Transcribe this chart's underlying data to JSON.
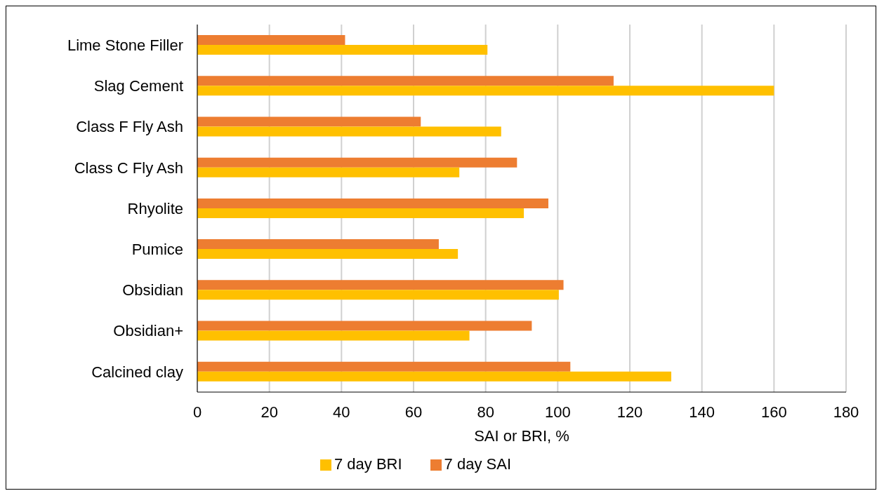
{
  "chart_data": {
    "type": "bar",
    "orientation": "horizontal",
    "xlabel": "SAI or BRI, %",
    "categories": [
      "Lime Stone Filler",
      "Slag Cement",
      "Class F Fly Ash",
      "Class C Fly Ash",
      "Rhyolite",
      "Pumice",
      "Obsidian",
      "Obsidian+",
      "Calcined clay"
    ],
    "series": [
      {
        "name": "7 day SAI",
        "color": "#ed7d31",
        "values": [
          41,
          115.5,
          62,
          88.7,
          97.4,
          67,
          101.6,
          92.8,
          103.5
        ]
      },
      {
        "name": "7 day BRI",
        "color": "#ffc000",
        "values": [
          80.5,
          160,
          84.3,
          72.7,
          90.6,
          72.3,
          100.3,
          75.5,
          131.5
        ]
      }
    ],
    "xlim": [
      0,
      180
    ],
    "xticks": [
      0,
      20,
      40,
      60,
      80,
      100,
      120,
      140,
      160,
      180
    ],
    "grid": "x",
    "legend": "bottom"
  }
}
